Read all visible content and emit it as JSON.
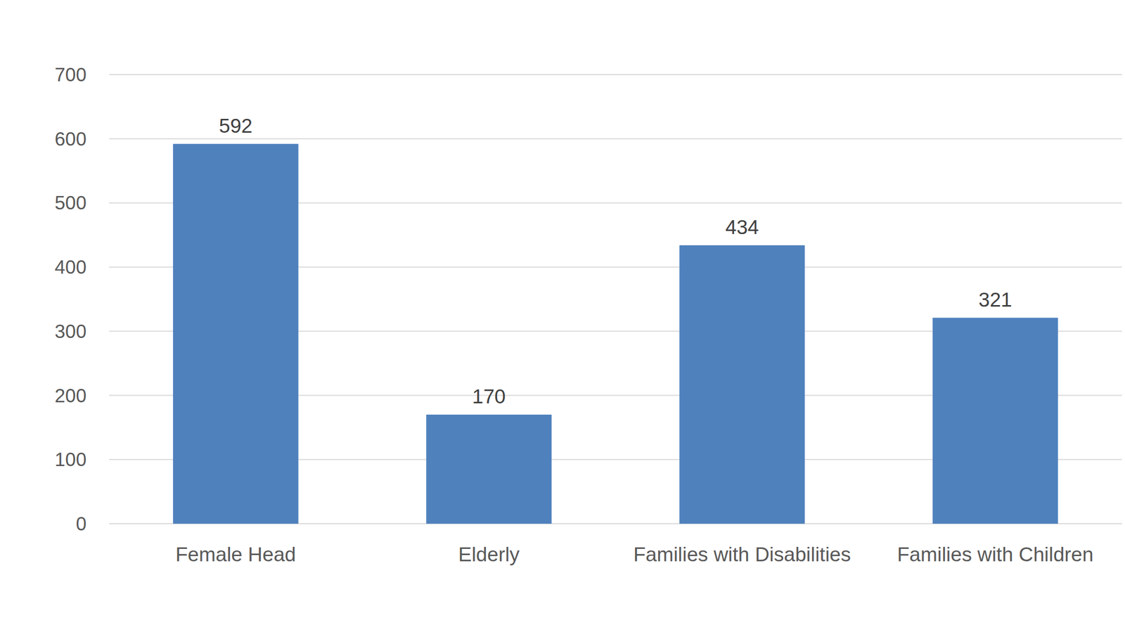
{
  "chart_data": {
    "type": "bar",
    "categories": [
      "Female Head",
      "Elderly",
      "Families with Disabilities",
      "Families with Children"
    ],
    "values": [
      592,
      170,
      434,
      321
    ],
    "color": "#4f81bd",
    "ylim": [
      0,
      700
    ],
    "yticks": [
      0,
      100,
      200,
      300,
      400,
      500,
      600,
      700
    ],
    "grid": true,
    "data_labels": true
  }
}
